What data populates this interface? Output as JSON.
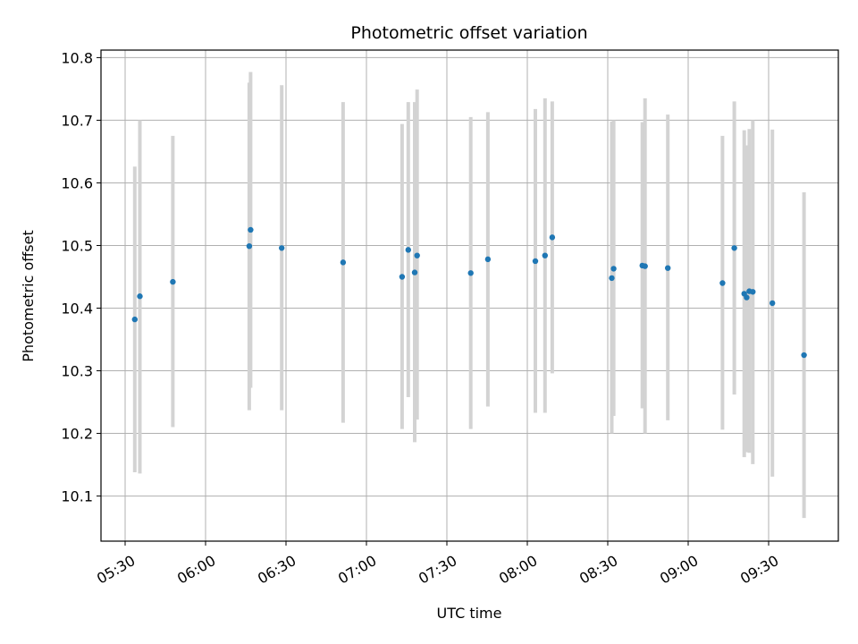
{
  "chart_data": {
    "type": "scatter",
    "title": "Photometric offset variation",
    "xlabel": "UTC time",
    "ylabel": "Photometric offset",
    "xlim": [
      "05:21",
      "09:56"
    ],
    "ylim": [
      10.028,
      10.812
    ],
    "x_ticks": [
      "05:30",
      "06:00",
      "06:30",
      "07:00",
      "07:30",
      "08:00",
      "08:30",
      "09:00",
      "09:30"
    ],
    "y_ticks": [
      10.1,
      10.2,
      10.3,
      10.4,
      10.5,
      10.6,
      10.7,
      10.8
    ],
    "y_tick_labels": [
      "10.1",
      "10.2",
      "10.3",
      "10.4",
      "10.5",
      "10.6",
      "10.7",
      "10.8"
    ],
    "grid": true,
    "marker_color": "#1f77b4",
    "errorbar_color": "#d3d3d3",
    "points": [
      {
        "t": "05:33:36",
        "y": 10.382,
        "lo": 10.138,
        "hi": 10.626
      },
      {
        "t": "05:35:30",
        "y": 10.419,
        "lo": 10.136,
        "hi": 10.7
      },
      {
        "t": "05:47:48",
        "y": 10.442,
        "lo": 10.21,
        "hi": 10.675
      },
      {
        "t": "06:16:18",
        "y": 10.499,
        "lo": 10.237,
        "hi": 10.76
      },
      {
        "t": "06:16:48",
        "y": 10.525,
        "lo": 10.273,
        "hi": 10.777
      },
      {
        "t": "06:28:24",
        "y": 10.496,
        "lo": 10.237,
        "hi": 10.756
      },
      {
        "t": "06:51:18",
        "y": 10.473,
        "lo": 10.217,
        "hi": 10.729
      },
      {
        "t": "07:13:18",
        "y": 10.45,
        "lo": 10.207,
        "hi": 10.694
      },
      {
        "t": "07:15:36",
        "y": 10.493,
        "lo": 10.258,
        "hi": 10.729
      },
      {
        "t": "07:18:00",
        "y": 10.457,
        "lo": 10.186,
        "hi": 10.729
      },
      {
        "t": "07:18:54",
        "y": 10.484,
        "lo": 10.222,
        "hi": 10.749
      },
      {
        "t": "07:38:54",
        "y": 10.456,
        "lo": 10.207,
        "hi": 10.705
      },
      {
        "t": "07:45:18",
        "y": 10.478,
        "lo": 10.243,
        "hi": 10.713
      },
      {
        "t": "08:03:00",
        "y": 10.475,
        "lo": 10.233,
        "hi": 10.718
      },
      {
        "t": "08:06:36",
        "y": 10.484,
        "lo": 10.233,
        "hi": 10.735
      },
      {
        "t": "08:09:18",
        "y": 10.513,
        "lo": 10.296,
        "hi": 10.73
      },
      {
        "t": "08:31:30",
        "y": 10.448,
        "lo": 10.2,
        "hi": 10.698
      },
      {
        "t": "08:32:12",
        "y": 10.463,
        "lo": 10.228,
        "hi": 10.7
      },
      {
        "t": "08:42:54",
        "y": 10.468,
        "lo": 10.24,
        "hi": 10.697
      },
      {
        "t": "08:43:54",
        "y": 10.467,
        "lo": 10.2,
        "hi": 10.735
      },
      {
        "t": "08:52:24",
        "y": 10.464,
        "lo": 10.221,
        "hi": 10.709
      },
      {
        "t": "09:12:48",
        "y": 10.44,
        "lo": 10.206,
        "hi": 10.675
      },
      {
        "t": "09:17:12",
        "y": 10.496,
        "lo": 10.262,
        "hi": 10.73
      },
      {
        "t": "09:20:54",
        "y": 10.423,
        "lo": 10.162,
        "hi": 10.684
      },
      {
        "t": "09:21:48",
        "y": 10.417,
        "lo": 10.17,
        "hi": 10.66
      },
      {
        "t": "09:22:48",
        "y": 10.427,
        "lo": 10.169,
        "hi": 10.686
      },
      {
        "t": "09:24:06",
        "y": 10.426,
        "lo": 10.151,
        "hi": 10.7
      },
      {
        "t": "09:31:24",
        "y": 10.408,
        "lo": 10.131,
        "hi": 10.685
      },
      {
        "t": "09:43:12",
        "y": 10.325,
        "lo": 10.065,
        "hi": 10.585
      }
    ]
  }
}
